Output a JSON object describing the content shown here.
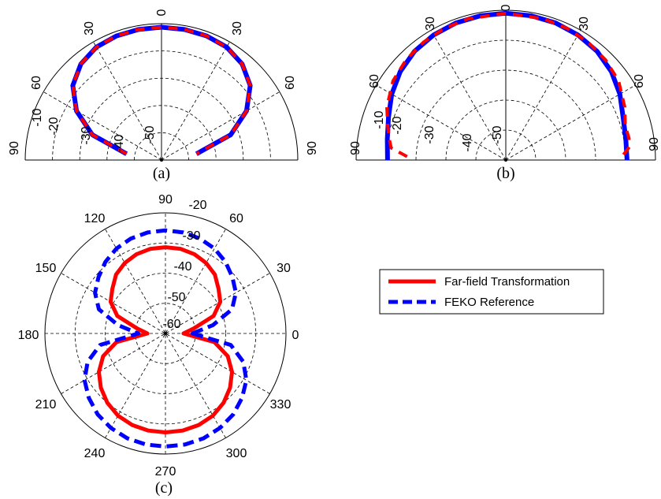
{
  "chart_data": [
    {
      "type": "polar-line",
      "caption": "(a)",
      "span": "upper-half",
      "r_range": [
        -60,
        -10
      ],
      "radial_ticks": [
        "-10",
        "-20",
        "-30",
        "-40",
        "-50"
      ],
      "angle_ticks": [
        "0",
        "30",
        "60",
        "90",
        "30",
        "60",
        "90"
      ],
      "series": [
        {
          "name": "Far-field Transformation",
          "theta_deg": [
            -80,
            -70,
            -60,
            -50,
            -40,
            -30,
            -20,
            -10,
            0,
            10,
            20,
            30,
            40,
            50,
            60,
            70,
            80
          ],
          "r_db": [
            -47,
            -33,
            -24,
            -17.5,
            -14,
            -12.2,
            -11.6,
            -11.4,
            -11.3,
            -11.4,
            -11.6,
            -12.2,
            -14,
            -17.5,
            -24,
            -33,
            -47
          ]
        },
        {
          "name": "FEKO Reference",
          "theta_deg": [
            -80,
            -70,
            -60,
            -50,
            -40,
            -30,
            -20,
            -10,
            0,
            10,
            20,
            30,
            40,
            50,
            60,
            70,
            80
          ],
          "r_db": [
            -47,
            -33,
            -24,
            -17.5,
            -14,
            -12.2,
            -11.6,
            -11.4,
            -11.3,
            -11.4,
            -11.6,
            -12.2,
            -14,
            -17.5,
            -24,
            -33,
            -47
          ]
        }
      ]
    },
    {
      "type": "polar-line",
      "caption": "(b)",
      "span": "upper-half",
      "r_range": [
        -60,
        -10
      ],
      "radial_ticks": [
        "-10",
        "-20",
        "-30",
        "-40",
        "-50"
      ],
      "angle_ticks": [
        "0",
        "30",
        "60",
        "90",
        "30",
        "60",
        "90"
      ],
      "series": [
        {
          "name": "Far-field Transformation",
          "theta_deg": [
            -88,
            -84,
            -80,
            -74,
            -66,
            -55,
            -45,
            -35,
            -25,
            -15,
            0,
            15,
            25,
            35,
            45,
            55,
            66,
            74,
            80,
            84,
            88
          ],
          "r_db": [
            -27,
            -21.5,
            -20.5,
            -19,
            -16.5,
            -14,
            -12.8,
            -12,
            -11.5,
            -11.2,
            -11,
            -11.2,
            -11.5,
            -12,
            -12.8,
            -14,
            -16.5,
            -18.5,
            -18.2,
            -18.5,
            -21
          ]
        },
        {
          "name": "FEKO Reference",
          "theta_deg": [
            -90,
            -80,
            -70,
            -60,
            -50,
            -40,
            -30,
            -20,
            -10,
            0,
            10,
            20,
            30,
            40,
            50,
            60,
            70,
            80,
            90
          ],
          "r_db": [
            -20.5,
            -19.8,
            -18.3,
            -16,
            -14,
            -12.6,
            -11.8,
            -11.3,
            -11.1,
            -11,
            -11.1,
            -11.3,
            -11.8,
            -12.6,
            -14,
            -16,
            -18.3,
            -19.3,
            -19.5
          ]
        }
      ]
    },
    {
      "type": "polar-line",
      "caption": "(c)",
      "span": "full",
      "r_range": [
        -60,
        -20
      ],
      "radial_ticks": [
        "-20",
        "-30",
        "-40",
        "-50",
        "-60"
      ],
      "angle_ticks": [
        "0",
        "30",
        "60",
        "90",
        "120",
        "150",
        "180",
        "210",
        "240",
        "270",
        "300",
        "330"
      ],
      "series": [
        {
          "name": "Far-field Transformation",
          "phi_deg": [
            0,
            10,
            20,
            30,
            40,
            50,
            60,
            70,
            80,
            90,
            100,
            110,
            120,
            130,
            140,
            150,
            160,
            170,
            180,
            190,
            200,
            210,
            220,
            230,
            240,
            250,
            260,
            270,
            280,
            290,
            300,
            310,
            320,
            330,
            340,
            350,
            360
          ],
          "r_db": [
            -54,
            -50.5,
            -43,
            -39,
            -37,
            -34.5,
            -33,
            -32,
            -31.5,
            -31.4,
            -31.5,
            -32,
            -33,
            -34.5,
            -37,
            -39,
            -43,
            -50.5,
            -54,
            -43.5,
            -38,
            -34.5,
            -32,
            -30,
            -28.5,
            -27.7,
            -27.3,
            -27.2,
            -27.3,
            -27.7,
            -28.5,
            -30,
            -32,
            -34.5,
            -38,
            -43.5,
            -54
          ]
        },
        {
          "name": "FEKO Reference",
          "phi_deg": [
            0,
            10,
            20,
            30,
            40,
            50,
            60,
            70,
            80,
            90,
            100,
            110,
            120,
            130,
            140,
            150,
            160,
            170,
            180,
            190,
            200,
            210,
            220,
            230,
            240,
            250,
            260,
            270,
            280,
            290,
            300,
            310,
            320,
            330,
            340,
            350,
            360
          ],
          "r_db": [
            -51,
            -44,
            -36.5,
            -33,
            -31,
            -29,
            -27.5,
            -26.5,
            -26,
            -25.8,
            -26,
            -26.5,
            -27.5,
            -29,
            -31,
            -33,
            -36.5,
            -44,
            -51,
            -38,
            -32.5,
            -29,
            -26.8,
            -25,
            -23.8,
            -23,
            -22.6,
            -22.5,
            -22.6,
            -23,
            -23.8,
            -25,
            -26.8,
            -29,
            -32.5,
            -38,
            -51
          ]
        }
      ],
      "legend": [
        "Far-field Transformation",
        "FEKO Reference"
      ]
    }
  ],
  "colors": {
    "far_field": "#ff0000",
    "feko": "#0000ff"
  }
}
